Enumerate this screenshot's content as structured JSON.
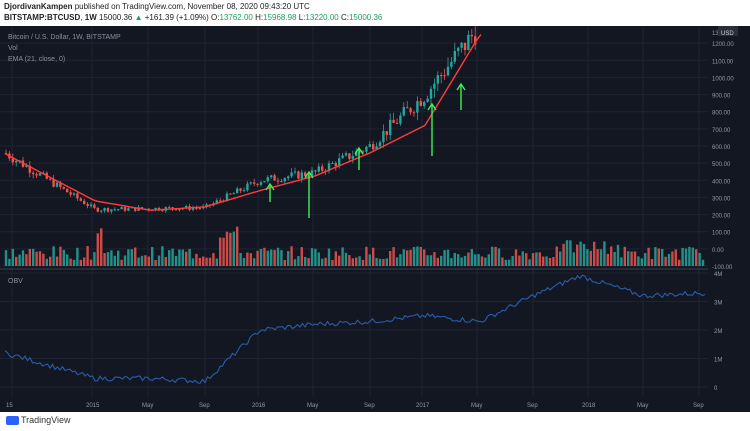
{
  "header": {
    "author": "DjordivanKampen",
    "published": "published on TradingView.com, November 08, 2020 09:43:20 UTC",
    "symbol": "BITSTAMP:BTCUSD",
    "interval": "1W",
    "price": "15000.36",
    "change": "+161.39 (+1.09%)",
    "o_label": "O:",
    "o_value": "13762.00",
    "h_label": "H:",
    "h_value": "15968.98",
    "l_label": "L:",
    "l_value": "13220.00",
    "c_label": "C:",
    "c_value": "15000.36"
  },
  "legend": {
    "title": "Bitcoin / U.S. Dollar, 1W, BITSTAMP",
    "vol": "Vol",
    "ema": "EMA (21, close, 0)",
    "obv": "OBV"
  },
  "price_axis": {
    "currency": "USD",
    "ticks": [
      "1200.00",
      "1100.00",
      "1000.00",
      "900.00",
      "800.00",
      "700.00",
      "600.00",
      "500.00",
      "400.00",
      "300.00",
      "200.00",
      "100.00",
      "0.00",
      "-100.00"
    ],
    "ticks_top": [
      "1300.00"
    ]
  },
  "obv_axis": {
    "ticks": [
      "4M",
      "3M",
      "2M",
      "1M",
      "0"
    ]
  },
  "time_axis": {
    "ticks": [
      "15",
      "2015",
      "May",
      "Sep",
      "2016",
      "May",
      "Sep",
      "2017",
      "May",
      "Sep",
      "2018",
      "May",
      "Sep"
    ]
  },
  "footer": {
    "brand": "TradingView"
  },
  "colors": {
    "background": "#131722",
    "up": "#26a69a",
    "down": "#ef5350",
    "ema": "#ff3b3b",
    "obv": "#2a5da8",
    "arrows": "#3df05a"
  },
  "chart_data": [
    {
      "type": "candlestick",
      "title": "Bitcoin / U.S. Dollar, 1W, BITSTAMP",
      "ylim": [
        -100,
        1300
      ],
      "x": [
        "2014-10",
        "2015-01",
        "2015-05",
        "2015-09",
        "2016-01",
        "2016-05",
        "2016-09",
        "2017-01",
        "2017-05"
      ],
      "close_approx": [
        560,
        230,
        235,
        240,
        400,
        445,
        600,
        900,
        1300
      ],
      "series": [
        {
          "name": "EMA (21, close, 0)",
          "values": [
            555,
            280,
            225,
            245,
            340,
            425,
            560,
            720,
            1250
          ]
        }
      ],
      "annotations": [
        "arrow",
        "arrow",
        "arrow",
        "arrow",
        "arrow"
      ]
    },
    {
      "type": "bar",
      "series": [
        {
          "name": "Vol"
        }
      ]
    },
    {
      "type": "line",
      "ylim": [
        0,
        4
      ],
      "ylabel": "",
      "series": [
        {
          "name": "OBV",
          "x": [
            "2014-10",
            "2015-01",
            "2015-05",
            "2015-09",
            "2016-01",
            "2016-05",
            "2016-09",
            "2017-01",
            "2017-05",
            "2017-09",
            "2017-12",
            "2018-05",
            "2018-09"
          ],
          "values": [
            1.2,
            0.3,
            0.3,
            0.2,
            2.0,
            2.2,
            2.3,
            2.5,
            2.3,
            3.2,
            3.9,
            3.2,
            3.3
          ]
        }
      ]
    }
  ]
}
